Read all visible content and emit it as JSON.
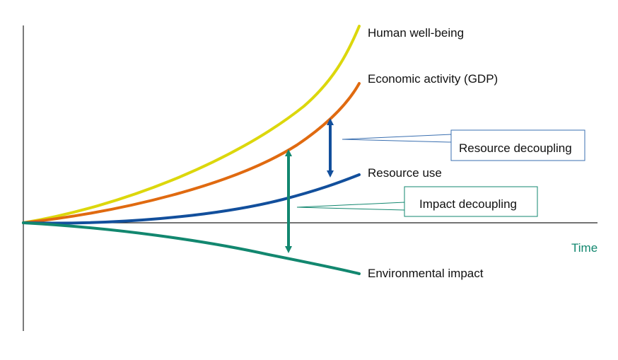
{
  "axis": {
    "x_label": "Time",
    "x_label_color": "#12876f",
    "axis_color": "#222222"
  },
  "curves": [
    {
      "label": "Human well-being",
      "color": "#dcd70c",
      "shape": "steep exponential rise"
    },
    {
      "label": "Economic activity (GDP)",
      "color": "#e06a10",
      "shape": "exponential rise"
    },
    {
      "label": "Resource use",
      "color": "#124f9c",
      "shape": "gentle rise"
    },
    {
      "label": "Environmental impact",
      "color": "#12876f",
      "shape": "decline"
    }
  ],
  "callouts": {
    "resource_decoupling": {
      "label": "Resource decoupling",
      "border_color": "#3a6fb0",
      "arrow_color": "#124f9c"
    },
    "impact_decoupling": {
      "label": "Impact decoupling",
      "border_color": "#12876f",
      "arrow_color": "#12876f"
    }
  }
}
